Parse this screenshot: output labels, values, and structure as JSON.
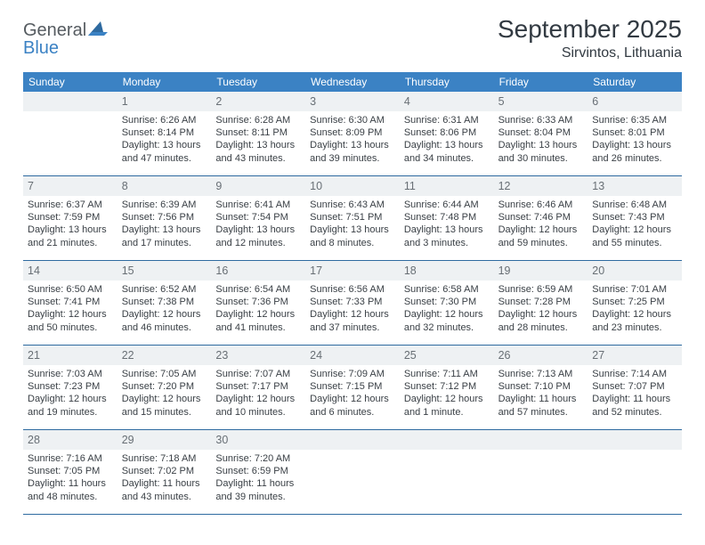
{
  "colors": {
    "header_bg": "#3b82c4",
    "header_text": "#ffffff",
    "daynum_bg": "#eef1f3",
    "daynum_text": "#686f75",
    "body_text": "#3a4046",
    "title_text": "#323a42",
    "logo_gray": "#555b60",
    "logo_blue": "#3b82c4",
    "border": "#2e6aa0",
    "page_bg": "#ffffff"
  },
  "typography": {
    "title_fontsize": 28,
    "location_fontsize": 16,
    "header_fontsize": 12,
    "daynum_fontsize": 12.5,
    "body_fontsize": 11,
    "font_family": "Arial"
  },
  "logo": {
    "text1": "General",
    "text2": "Blue"
  },
  "title": "September 2025",
  "location": "Sirvintos, Lithuania",
  "dayNames": [
    "Sunday",
    "Monday",
    "Tuesday",
    "Wednesday",
    "Thursday",
    "Friday",
    "Saturday"
  ],
  "weeks": [
    {
      "nums": [
        "",
        "1",
        "2",
        "3",
        "4",
        "5",
        "6"
      ],
      "cells": [
        null,
        {
          "sunrise": "Sunrise: 6:26 AM",
          "sunset": "Sunset: 8:14 PM",
          "daylight": "Daylight: 13 hours and 47 minutes."
        },
        {
          "sunrise": "Sunrise: 6:28 AM",
          "sunset": "Sunset: 8:11 PM",
          "daylight": "Daylight: 13 hours and 43 minutes."
        },
        {
          "sunrise": "Sunrise: 6:30 AM",
          "sunset": "Sunset: 8:09 PM",
          "daylight": "Daylight: 13 hours and 39 minutes."
        },
        {
          "sunrise": "Sunrise: 6:31 AM",
          "sunset": "Sunset: 8:06 PM",
          "daylight": "Daylight: 13 hours and 34 minutes."
        },
        {
          "sunrise": "Sunrise: 6:33 AM",
          "sunset": "Sunset: 8:04 PM",
          "daylight": "Daylight: 13 hours and 30 minutes."
        },
        {
          "sunrise": "Sunrise: 6:35 AM",
          "sunset": "Sunset: 8:01 PM",
          "daylight": "Daylight: 13 hours and 26 minutes."
        }
      ]
    },
    {
      "nums": [
        "7",
        "8",
        "9",
        "10",
        "11",
        "12",
        "13"
      ],
      "cells": [
        {
          "sunrise": "Sunrise: 6:37 AM",
          "sunset": "Sunset: 7:59 PM",
          "daylight": "Daylight: 13 hours and 21 minutes."
        },
        {
          "sunrise": "Sunrise: 6:39 AM",
          "sunset": "Sunset: 7:56 PM",
          "daylight": "Daylight: 13 hours and 17 minutes."
        },
        {
          "sunrise": "Sunrise: 6:41 AM",
          "sunset": "Sunset: 7:54 PM",
          "daylight": "Daylight: 13 hours and 12 minutes."
        },
        {
          "sunrise": "Sunrise: 6:43 AM",
          "sunset": "Sunset: 7:51 PM",
          "daylight": "Daylight: 13 hours and 8 minutes."
        },
        {
          "sunrise": "Sunrise: 6:44 AM",
          "sunset": "Sunset: 7:48 PM",
          "daylight": "Daylight: 13 hours and 3 minutes."
        },
        {
          "sunrise": "Sunrise: 6:46 AM",
          "sunset": "Sunset: 7:46 PM",
          "daylight": "Daylight: 12 hours and 59 minutes."
        },
        {
          "sunrise": "Sunrise: 6:48 AM",
          "sunset": "Sunset: 7:43 PM",
          "daylight": "Daylight: 12 hours and 55 minutes."
        }
      ]
    },
    {
      "nums": [
        "14",
        "15",
        "16",
        "17",
        "18",
        "19",
        "20"
      ],
      "cells": [
        {
          "sunrise": "Sunrise: 6:50 AM",
          "sunset": "Sunset: 7:41 PM",
          "daylight": "Daylight: 12 hours and 50 minutes."
        },
        {
          "sunrise": "Sunrise: 6:52 AM",
          "sunset": "Sunset: 7:38 PM",
          "daylight": "Daylight: 12 hours and 46 minutes."
        },
        {
          "sunrise": "Sunrise: 6:54 AM",
          "sunset": "Sunset: 7:36 PM",
          "daylight": "Daylight: 12 hours and 41 minutes."
        },
        {
          "sunrise": "Sunrise: 6:56 AM",
          "sunset": "Sunset: 7:33 PM",
          "daylight": "Daylight: 12 hours and 37 minutes."
        },
        {
          "sunrise": "Sunrise: 6:58 AM",
          "sunset": "Sunset: 7:30 PM",
          "daylight": "Daylight: 12 hours and 32 minutes."
        },
        {
          "sunrise": "Sunrise: 6:59 AM",
          "sunset": "Sunset: 7:28 PM",
          "daylight": "Daylight: 12 hours and 28 minutes."
        },
        {
          "sunrise": "Sunrise: 7:01 AM",
          "sunset": "Sunset: 7:25 PM",
          "daylight": "Daylight: 12 hours and 23 minutes."
        }
      ]
    },
    {
      "nums": [
        "21",
        "22",
        "23",
        "24",
        "25",
        "26",
        "27"
      ],
      "cells": [
        {
          "sunrise": "Sunrise: 7:03 AM",
          "sunset": "Sunset: 7:23 PM",
          "daylight": "Daylight: 12 hours and 19 minutes."
        },
        {
          "sunrise": "Sunrise: 7:05 AM",
          "sunset": "Sunset: 7:20 PM",
          "daylight": "Daylight: 12 hours and 15 minutes."
        },
        {
          "sunrise": "Sunrise: 7:07 AM",
          "sunset": "Sunset: 7:17 PM",
          "daylight": "Daylight: 12 hours and 10 minutes."
        },
        {
          "sunrise": "Sunrise: 7:09 AM",
          "sunset": "Sunset: 7:15 PM",
          "daylight": "Daylight: 12 hours and 6 minutes."
        },
        {
          "sunrise": "Sunrise: 7:11 AM",
          "sunset": "Sunset: 7:12 PM",
          "daylight": "Daylight: 12 hours and 1 minute."
        },
        {
          "sunrise": "Sunrise: 7:13 AM",
          "sunset": "Sunset: 7:10 PM",
          "daylight": "Daylight: 11 hours and 57 minutes."
        },
        {
          "sunrise": "Sunrise: 7:14 AM",
          "sunset": "Sunset: 7:07 PM",
          "daylight": "Daylight: 11 hours and 52 minutes."
        }
      ]
    },
    {
      "nums": [
        "28",
        "29",
        "30",
        "",
        "",
        "",
        ""
      ],
      "cells": [
        {
          "sunrise": "Sunrise: 7:16 AM",
          "sunset": "Sunset: 7:05 PM",
          "daylight": "Daylight: 11 hours and 48 minutes."
        },
        {
          "sunrise": "Sunrise: 7:18 AM",
          "sunset": "Sunset: 7:02 PM",
          "daylight": "Daylight: 11 hours and 43 minutes."
        },
        {
          "sunrise": "Sunrise: 7:20 AM",
          "sunset": "Sunset: 6:59 PM",
          "daylight": "Daylight: 11 hours and 39 minutes."
        },
        null,
        null,
        null,
        null
      ]
    }
  ]
}
